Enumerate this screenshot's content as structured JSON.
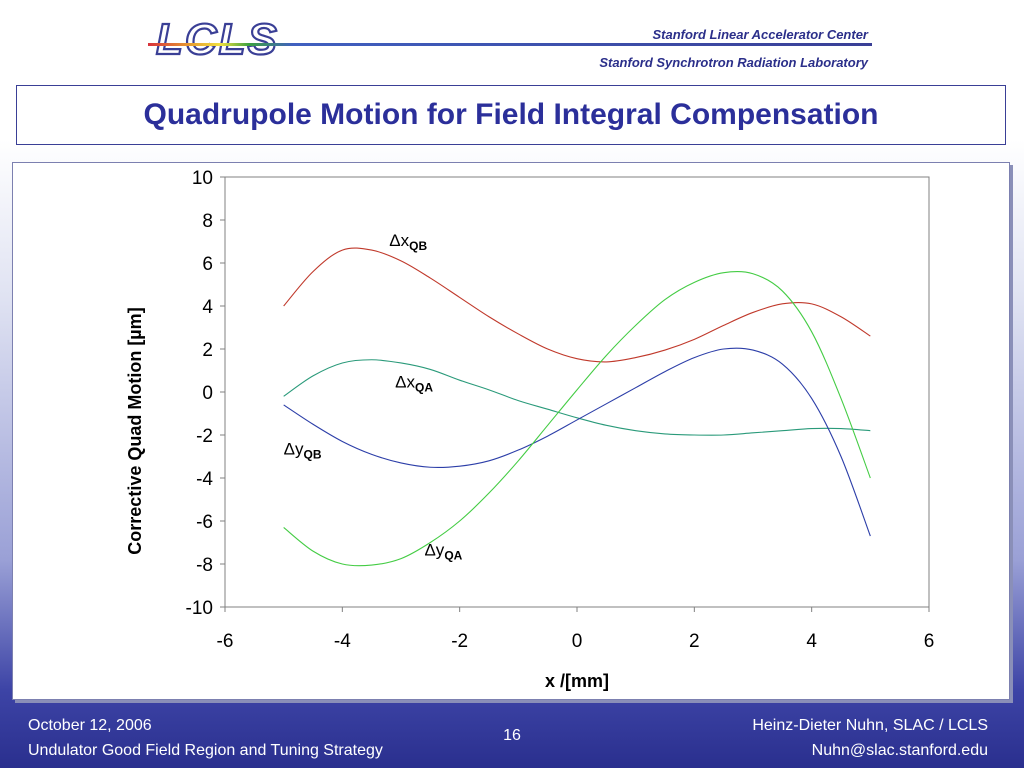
{
  "header": {
    "logo_text": "LCLS",
    "org_line1": "Stanford Linear Accelerator Center",
    "org_line2": "Stanford Synchrotron Radiation Laboratory"
  },
  "slide": {
    "title": "Quadrupole Motion for Field Integral Compensation",
    "page_number": "16"
  },
  "footer": {
    "date": "October 12, 2006",
    "talk_title": "Undulator Good Field Region and Tuning Strategy",
    "author": "Heinz-Dieter Nuhn, SLAC / LCLS",
    "email": "Nuhn@slac.stanford.edu"
  },
  "chart_data": {
    "type": "line",
    "xlabel": "x /[mm]",
    "ylabel": "Corrective Quad Motion [µm]",
    "xlim": [
      -6,
      6
    ],
    "ylim": [
      -10,
      10
    ],
    "xticks": [
      -6,
      -4,
      -2,
      0,
      2,
      4,
      6
    ],
    "yticks": [
      -10,
      -8,
      -6,
      -4,
      -2,
      0,
      2,
      4,
      6,
      8,
      10
    ],
    "grid": false,
    "series": [
      {
        "name": "Δx_QB",
        "label_main": "Δx",
        "label_sub": "QB",
        "label_at": [
          -3.2,
          6.8
        ],
        "color": "#c0392b",
        "points": [
          [
            -5,
            4.0
          ],
          [
            -4.5,
            5.6
          ],
          [
            -4,
            6.6
          ],
          [
            -3.5,
            6.6
          ],
          [
            -3,
            6.1
          ],
          [
            -2.5,
            5.3
          ],
          [
            -2,
            4.4
          ],
          [
            -1.5,
            3.5
          ],
          [
            -1,
            2.7
          ],
          [
            -0.5,
            2.0
          ],
          [
            0,
            1.55
          ],
          [
            0.5,
            1.4
          ],
          [
            1,
            1.6
          ],
          [
            1.5,
            1.95
          ],
          [
            2,
            2.45
          ],
          [
            2.5,
            3.1
          ],
          [
            3,
            3.7
          ],
          [
            3.5,
            4.1
          ],
          [
            4,
            4.1
          ],
          [
            4.5,
            3.5
          ],
          [
            5,
            2.6
          ]
        ]
      },
      {
        "name": "Δx_QA",
        "label_main": "Δx",
        "label_sub": "QA",
        "label_at": [
          -3.1,
          0.2
        ],
        "color": "#2a9a7a",
        "points": [
          [
            -5,
            -0.2
          ],
          [
            -4.5,
            0.75
          ],
          [
            -4,
            1.35
          ],
          [
            -3.5,
            1.5
          ],
          [
            -3,
            1.35
          ],
          [
            -2.5,
            1.05
          ],
          [
            -2,
            0.55
          ],
          [
            -1.5,
            0.1
          ],
          [
            -1,
            -0.4
          ],
          [
            -0.5,
            -0.8
          ],
          [
            0,
            -1.2
          ],
          [
            0.5,
            -1.55
          ],
          [
            1,
            -1.8
          ],
          [
            1.5,
            -1.95
          ],
          [
            2,
            -2.0
          ],
          [
            2.5,
            -2.0
          ],
          [
            3,
            -1.9
          ],
          [
            3.5,
            -1.8
          ],
          [
            4,
            -1.7
          ],
          [
            4.5,
            -1.7
          ],
          [
            5,
            -1.8
          ]
        ]
      },
      {
        "name": "Δy_QB",
        "label_main": "Δy",
        "label_sub": "QB",
        "label_at": [
          -5.0,
          -2.9
        ],
        "color": "#2c3ea8",
        "points": [
          [
            -5,
            -0.6
          ],
          [
            -4.5,
            -1.5
          ],
          [
            -4,
            -2.3
          ],
          [
            -3.5,
            -2.9
          ],
          [
            -3,
            -3.3
          ],
          [
            -2.5,
            -3.5
          ],
          [
            -2,
            -3.45
          ],
          [
            -1.5,
            -3.2
          ],
          [
            -1,
            -2.7
          ],
          [
            -0.5,
            -2.05
          ],
          [
            0,
            -1.3
          ],
          [
            0.5,
            -0.55
          ],
          [
            1,
            0.2
          ],
          [
            1.5,
            0.95
          ],
          [
            2,
            1.6
          ],
          [
            2.5,
            2.0
          ],
          [
            3,
            1.95
          ],
          [
            3.5,
            1.3
          ],
          [
            4,
            -0.3
          ],
          [
            4.5,
            -3.0
          ],
          [
            5,
            -6.7
          ]
        ]
      },
      {
        "name": "Δy_QA",
        "label_main": "Δy",
        "label_sub": "QA",
        "label_at": [
          -2.6,
          -7.6
        ],
        "color": "#44cc44",
        "points": [
          [
            -5,
            -6.3
          ],
          [
            -4.5,
            -7.4
          ],
          [
            -4,
            -8.0
          ],
          [
            -3.5,
            -8.05
          ],
          [
            -3,
            -7.75
          ],
          [
            -2.5,
            -7.0
          ],
          [
            -2,
            -6.0
          ],
          [
            -1.5,
            -4.7
          ],
          [
            -1,
            -3.2
          ],
          [
            -0.5,
            -1.55
          ],
          [
            0,
            0.1
          ],
          [
            0.5,
            1.7
          ],
          [
            1,
            3.1
          ],
          [
            1.5,
            4.3
          ],
          [
            2,
            5.1
          ],
          [
            2.5,
            5.55
          ],
          [
            3,
            5.5
          ],
          [
            3.5,
            4.7
          ],
          [
            4,
            2.8
          ],
          [
            4.5,
            -0.3
          ],
          [
            5,
            -4.0
          ]
        ]
      }
    ]
  }
}
